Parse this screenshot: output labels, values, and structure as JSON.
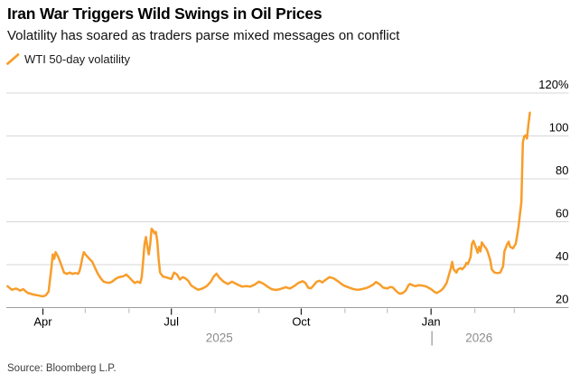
{
  "header": {
    "title": "Iran War Triggers Wild Swings in Oil Prices",
    "subtitle": "Volatility has soared as traders parse mixed messages on conflict"
  },
  "legend": {
    "label": "WTI 50-day volatility"
  },
  "source": "Source: Bloomberg L.P.",
  "colors": {
    "line": "#F89D2A",
    "grid": "#D7D7D7",
    "axis": "#9E9E9E",
    "tick_major": "#1A1A1A",
    "tick_minor": "#C0C0C0",
    "label_text": "#000000",
    "year_text": "#8C8C8C",
    "year_separator": "#A9A9A9"
  },
  "chart_data": {
    "type": "line",
    "title": "Iran War Triggers Wild Swings in Oil Prices",
    "subtitle": "Volatility has soared as traders parse mixed messages on conflict",
    "xlabel": "",
    "ylabel": "",
    "ylim": [
      20,
      120
    ],
    "grid": true,
    "legend_position": "top-left",
    "y_ticks": [
      {
        "v": 120,
        "label": "120%"
      },
      {
        "v": 100,
        "label": "100"
      },
      {
        "v": 80,
        "label": "80"
      },
      {
        "v": 60,
        "label": "60"
      },
      {
        "v": 40,
        "label": "40"
      },
      {
        "v": 20,
        "label": "20"
      }
    ],
    "x_ticks": [
      {
        "date": "2025-04-01",
        "label": "Apr",
        "major": true
      },
      {
        "date": "2025-05-01",
        "label": null,
        "major": false
      },
      {
        "date": "2025-06-01",
        "label": null,
        "major": false
      },
      {
        "date": "2025-07-01",
        "label": "Jul",
        "major": true
      },
      {
        "date": "2025-08-01",
        "label": null,
        "major": false
      },
      {
        "date": "2025-09-01",
        "label": null,
        "major": false
      },
      {
        "date": "2025-10-01",
        "label": "Oct",
        "major": true
      },
      {
        "date": "2025-11-01",
        "label": null,
        "major": false
      },
      {
        "date": "2025-12-01",
        "label": null,
        "major": false
      },
      {
        "date": "2026-01-01",
        "label": "Jan",
        "major": true
      },
      {
        "date": "2026-02-01",
        "label": null,
        "major": false
      },
      {
        "date": "2026-03-01",
        "label": null,
        "major": false
      }
    ],
    "years": [
      {
        "label": "2025",
        "anchor": "2025-08-04"
      },
      {
        "label": "2026",
        "anchor": "2026-02-04"
      }
    ],
    "year_separator_date": "2026-01-01",
    "series": [
      {
        "name": "WTI 50-day volatility",
        "points": [
          [
            "2025-03-07",
            30.0
          ],
          [
            "2025-03-10",
            28.3
          ],
          [
            "2025-03-13",
            28.9
          ],
          [
            "2025-03-16",
            27.9
          ],
          [
            "2025-03-18",
            28.6
          ],
          [
            "2025-03-21",
            26.9
          ],
          [
            "2025-03-25",
            26.1
          ],
          [
            "2025-03-29",
            25.6
          ],
          [
            "2025-04-01",
            25.2
          ],
          [
            "2025-04-03",
            25.7
          ],
          [
            "2025-04-05",
            27.5
          ],
          [
            "2025-04-06",
            32.8
          ],
          [
            "2025-04-07",
            38.5
          ],
          [
            "2025-04-08",
            44.8
          ],
          [
            "2025-04-09",
            42.7
          ],
          [
            "2025-04-10",
            45.8
          ],
          [
            "2025-04-12",
            43.4
          ],
          [
            "2025-04-14",
            39.9
          ],
          [
            "2025-04-16",
            36.3
          ],
          [
            "2025-04-18",
            35.7
          ],
          [
            "2025-04-20",
            36.3
          ],
          [
            "2025-04-22",
            35.7
          ],
          [
            "2025-04-24",
            36.1
          ],
          [
            "2025-04-26",
            35.8
          ],
          [
            "2025-04-27",
            37.1
          ],
          [
            "2025-04-28",
            39.9
          ],
          [
            "2025-04-29",
            43.4
          ],
          [
            "2025-04-30",
            45.8
          ],
          [
            "2025-05-02",
            44.1
          ],
          [
            "2025-05-04",
            42.7
          ],
          [
            "2025-05-06",
            41.3
          ],
          [
            "2025-05-08",
            38.4
          ],
          [
            "2025-05-10",
            35.7
          ],
          [
            "2025-05-12",
            33.6
          ],
          [
            "2025-05-14",
            32.1
          ],
          [
            "2025-05-16",
            31.7
          ],
          [
            "2025-05-18",
            31.5
          ],
          [
            "2025-05-20",
            32.1
          ],
          [
            "2025-05-22",
            33.1
          ],
          [
            "2025-05-24",
            34.0
          ],
          [
            "2025-05-26",
            34.3
          ],
          [
            "2025-05-28",
            34.6
          ],
          [
            "2025-05-30",
            35.4
          ],
          [
            "2025-06-01",
            34.2
          ],
          [
            "2025-06-03",
            32.8
          ],
          [
            "2025-06-05",
            31.5
          ],
          [
            "2025-06-07",
            32.1
          ],
          [
            "2025-06-09",
            31.5
          ],
          [
            "2025-06-10",
            34.2
          ],
          [
            "2025-06-11",
            41.3
          ],
          [
            "2025-06-12",
            49.7
          ],
          [
            "2025-06-13",
            52.9
          ],
          [
            "2025-06-14",
            48.3
          ],
          [
            "2025-06-15",
            44.8
          ],
          [
            "2025-06-16",
            49.7
          ],
          [
            "2025-06-17",
            56.7
          ],
          [
            "2025-06-18",
            56.0
          ],
          [
            "2025-06-19",
            54.6
          ],
          [
            "2025-06-20",
            55.3
          ],
          [
            "2025-06-21",
            51.1
          ],
          [
            "2025-06-22",
            42.7
          ],
          [
            "2025-06-23",
            36.3
          ],
          [
            "2025-06-25",
            34.5
          ],
          [
            "2025-06-28",
            34.0
          ],
          [
            "2025-07-01",
            33.3
          ],
          [
            "2025-07-03",
            36.3
          ],
          [
            "2025-07-05",
            35.4
          ],
          [
            "2025-07-07",
            33.1
          ],
          [
            "2025-07-09",
            34.2
          ],
          [
            "2025-07-11",
            33.6
          ],
          [
            "2025-07-13",
            32.5
          ],
          [
            "2025-07-15",
            30.3
          ],
          [
            "2025-07-18",
            29.0
          ],
          [
            "2025-07-20",
            28.3
          ],
          [
            "2025-07-23",
            28.9
          ],
          [
            "2025-07-26",
            30.0
          ],
          [
            "2025-07-29",
            32.1
          ],
          [
            "2025-07-31",
            34.5
          ],
          [
            "2025-08-02",
            35.8
          ],
          [
            "2025-08-04",
            34.0
          ],
          [
            "2025-08-07",
            32.1
          ],
          [
            "2025-08-10",
            31.0
          ],
          [
            "2025-08-13",
            32.1
          ],
          [
            "2025-08-17",
            30.7
          ],
          [
            "2025-08-20",
            29.8
          ],
          [
            "2025-08-23",
            30.0
          ],
          [
            "2025-08-26",
            29.8
          ],
          [
            "2025-08-29",
            30.7
          ],
          [
            "2025-09-01",
            32.1
          ],
          [
            "2025-09-04",
            31.2
          ],
          [
            "2025-09-07",
            29.8
          ],
          [
            "2025-09-10",
            28.6
          ],
          [
            "2025-09-13",
            28.2
          ],
          [
            "2025-09-16",
            28.6
          ],
          [
            "2025-09-20",
            29.5
          ],
          [
            "2025-09-23",
            28.9
          ],
          [
            "2025-09-26",
            30.0
          ],
          [
            "2025-09-29",
            31.5
          ],
          [
            "2025-10-02",
            32.3
          ],
          [
            "2025-10-04",
            31.5
          ],
          [
            "2025-10-06",
            29.2
          ],
          [
            "2025-10-08",
            29.0
          ],
          [
            "2025-10-10",
            30.5
          ],
          [
            "2025-10-12",
            32.1
          ],
          [
            "2025-10-14",
            32.5
          ],
          [
            "2025-10-16",
            31.7
          ],
          [
            "2025-10-18",
            32.8
          ],
          [
            "2025-10-21",
            34.2
          ],
          [
            "2025-10-24",
            33.6
          ],
          [
            "2025-10-27",
            32.3
          ],
          [
            "2025-10-29",
            31.3
          ],
          [
            "2025-10-31",
            30.3
          ],
          [
            "2025-11-04",
            29.3
          ],
          [
            "2025-11-07",
            28.6
          ],
          [
            "2025-11-10",
            28.3
          ],
          [
            "2025-11-13",
            28.6
          ],
          [
            "2025-11-16",
            29.1
          ],
          [
            "2025-11-18",
            29.6
          ],
          [
            "2025-11-21",
            30.7
          ],
          [
            "2025-11-23",
            31.9
          ],
          [
            "2025-11-26",
            30.7
          ],
          [
            "2025-11-28",
            29.3
          ],
          [
            "2025-12-01",
            28.9
          ],
          [
            "2025-12-03",
            29.6
          ],
          [
            "2025-12-05",
            29.3
          ],
          [
            "2025-12-07",
            27.9
          ],
          [
            "2025-12-09",
            26.8
          ],
          [
            "2025-12-10",
            26.5
          ],
          [
            "2025-12-12",
            26.8
          ],
          [
            "2025-12-14",
            27.9
          ],
          [
            "2025-12-16",
            30.4
          ],
          [
            "2025-12-17",
            31.0
          ],
          [
            "2025-12-19",
            30.4
          ],
          [
            "2025-12-21",
            30.0
          ],
          [
            "2025-12-23",
            30.4
          ],
          [
            "2025-12-25",
            30.3
          ],
          [
            "2025-12-28",
            30.0
          ],
          [
            "2025-12-30",
            29.3
          ],
          [
            "2026-01-01",
            28.6
          ],
          [
            "2026-01-03",
            27.5
          ],
          [
            "2026-01-05",
            26.8
          ],
          [
            "2026-01-08",
            27.9
          ],
          [
            "2026-01-10",
            29.3
          ],
          [
            "2026-01-12",
            31.5
          ],
          [
            "2026-01-13",
            33.6
          ],
          [
            "2026-01-15",
            38.4
          ],
          [
            "2026-01-16",
            41.3
          ],
          [
            "2026-01-17",
            37.8
          ],
          [
            "2026-01-19",
            36.3
          ],
          [
            "2026-01-20",
            37.8
          ],
          [
            "2026-01-22",
            38.4
          ],
          [
            "2026-01-23",
            37.8
          ],
          [
            "2026-01-25",
            39.2
          ],
          [
            "2026-01-26",
            40.8
          ],
          [
            "2026-01-27",
            40.3
          ],
          [
            "2026-01-29",
            43.4
          ],
          [
            "2026-01-30",
            49.7
          ],
          [
            "2026-01-31",
            51.1
          ],
          [
            "2026-02-02",
            47.6
          ],
          [
            "2026-02-03",
            45.5
          ],
          [
            "2026-02-04",
            48.3
          ],
          [
            "2026-02-05",
            46.2
          ],
          [
            "2026-02-06",
            50.4
          ],
          [
            "2026-02-08",
            48.3
          ],
          [
            "2026-02-09",
            47.6
          ],
          [
            "2026-02-10",
            46.2
          ],
          [
            "2026-02-12",
            42.0
          ],
          [
            "2026-02-13",
            37.8
          ],
          [
            "2026-02-15",
            36.3
          ],
          [
            "2026-02-17",
            36.1
          ],
          [
            "2026-02-19",
            36.3
          ],
          [
            "2026-02-21",
            39.2
          ],
          [
            "2026-02-22",
            46.2
          ],
          [
            "2026-02-24",
            49.7
          ],
          [
            "2026-02-25",
            50.7
          ],
          [
            "2026-02-26",
            48.3
          ],
          [
            "2026-02-28",
            47.6
          ],
          [
            "2026-03-02",
            49.7
          ],
          [
            "2026-03-03",
            53.5
          ],
          [
            "2026-03-04",
            58.0
          ],
          [
            "2026-03-05",
            63.5
          ],
          [
            "2026-03-06",
            69.3
          ],
          [
            "2026-03-07",
            97.0
          ],
          [
            "2026-03-08",
            99.8
          ],
          [
            "2026-03-09",
            100.3
          ],
          [
            "2026-03-10",
            98.8
          ],
          [
            "2026-03-11",
            105.5
          ],
          [
            "2026-03-12",
            110.8
          ]
        ]
      }
    ]
  }
}
